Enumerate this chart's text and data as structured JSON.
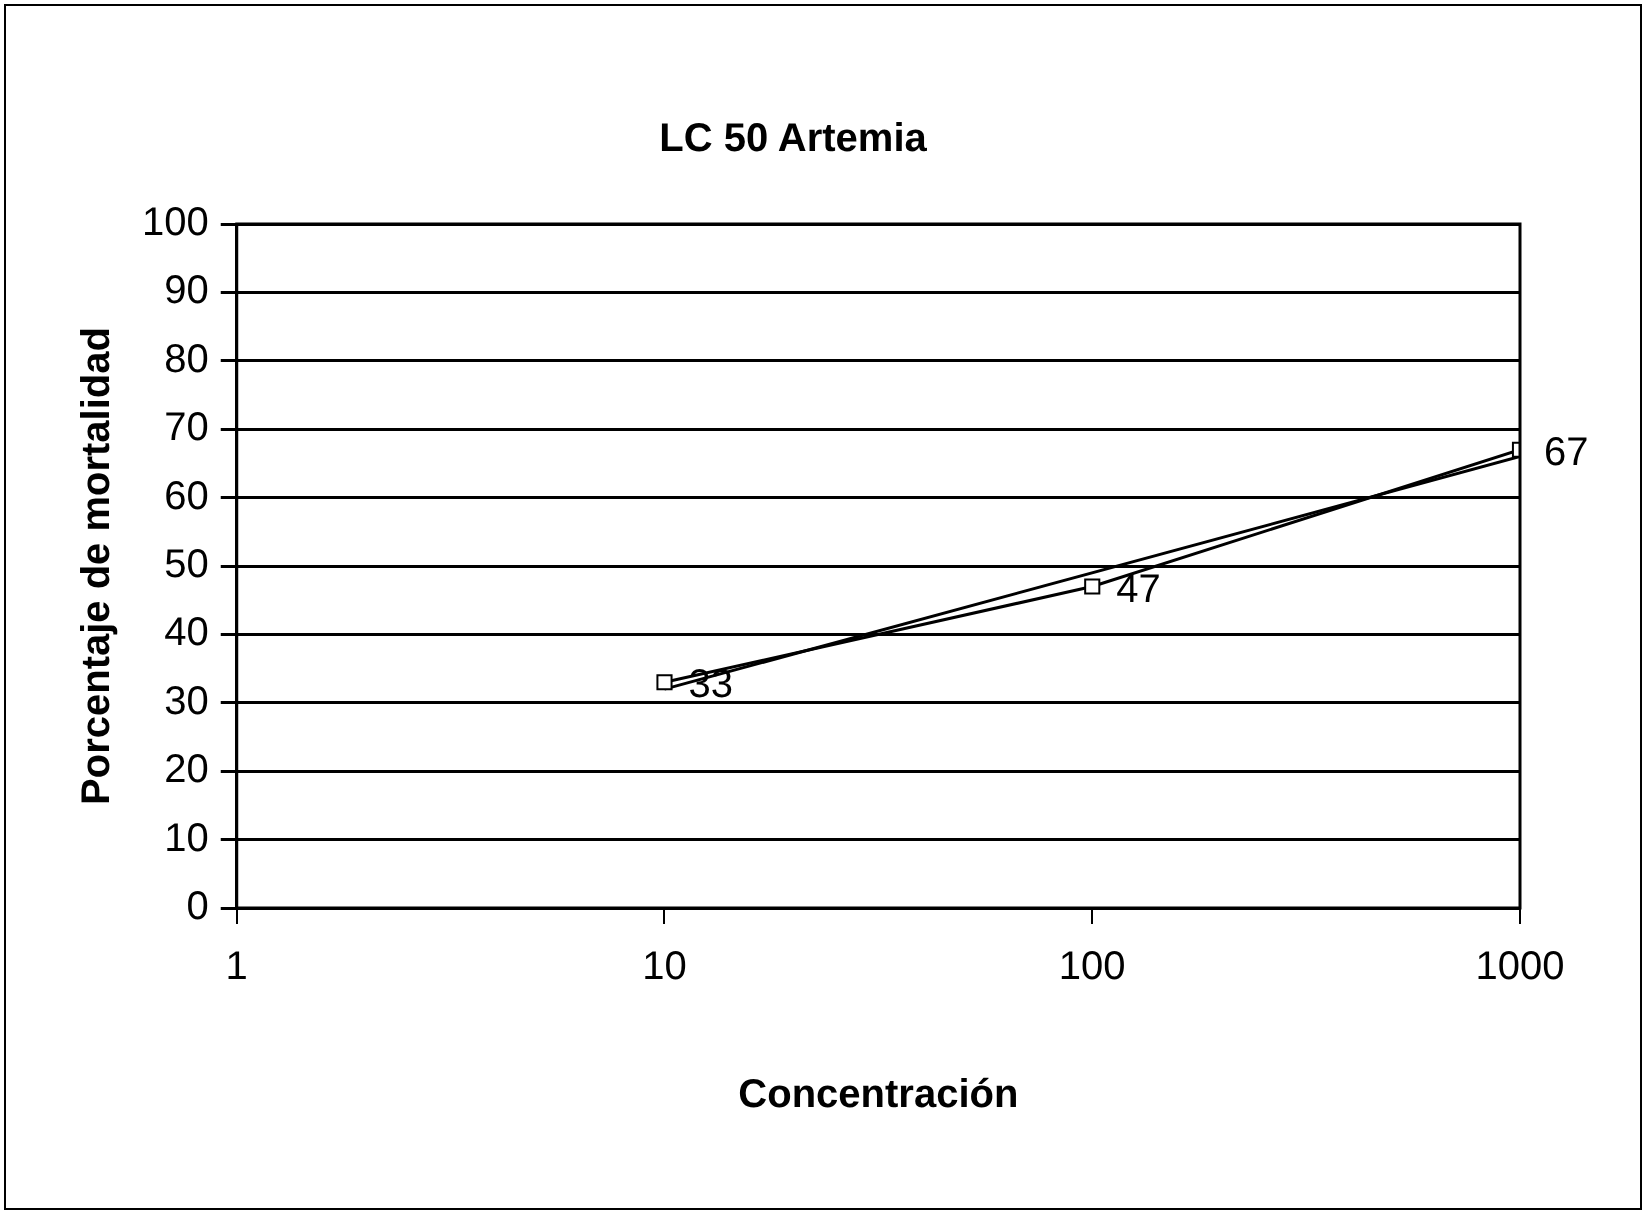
{
  "chart_data": {
    "type": "scatter",
    "title": "LC 50 Artemia",
    "xlabel": "Concentración",
    "ylabel": "Porcentaje de mortalidad",
    "log": "x",
    "xlim": [
      1,
      1000
    ],
    "xticks": [
      1,
      10,
      100,
      1000
    ],
    "ylim": [
      0,
      100
    ],
    "yticks": [
      0,
      10,
      20,
      30,
      40,
      50,
      60,
      70,
      80,
      90,
      100
    ],
    "grid": "y",
    "series": [
      {
        "type": "line",
        "color": "#000000",
        "x": [
          10,
          100,
          1000
        ],
        "values": [
          33,
          47,
          67
        ],
        "marker": "square",
        "line_style": "solid",
        "value_labels": [
          "33",
          "47",
          "67"
        ]
      },
      {
        "type": "line",
        "color": "#000000",
        "x": [
          10,
          1000
        ],
        "values": [
          32,
          66
        ],
        "marker": "none",
        "line_style": "solid"
      }
    ]
  }
}
